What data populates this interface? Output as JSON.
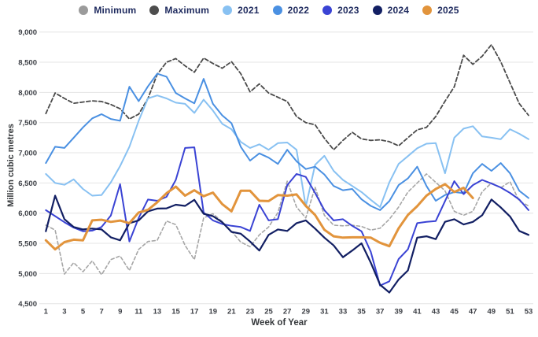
{
  "legend": {
    "items": [
      {
        "id": "minimum",
        "label": "Minimum",
        "color": "#9b9b9b"
      },
      {
        "id": "maximum",
        "label": "Maximum",
        "color": "#4d4d4d"
      },
      {
        "id": "2021",
        "label": "2021",
        "color": "#88c1f2"
      },
      {
        "id": "2022",
        "label": "2022",
        "color": "#4a90e2"
      },
      {
        "id": "2023",
        "label": "2023",
        "color": "#3a43d4"
      },
      {
        "id": "2024",
        "label": "2024",
        "color": "#121f63"
      },
      {
        "id": "2025",
        "label": "2025",
        "color": "#e2943c"
      }
    ]
  },
  "chart_data": {
    "type": "line",
    "title": "",
    "xlabel": "Week of Year",
    "ylabel": "Million cubic metres",
    "xlim": [
      1,
      53
    ],
    "ylim": [
      4500,
      9000
    ],
    "grid": "horizontal",
    "legend_position": "top-center",
    "x_ticks": [
      1,
      3,
      5,
      7,
      9,
      11,
      13,
      15,
      17,
      19,
      21,
      23,
      25,
      27,
      29,
      31,
      33,
      35,
      37,
      39,
      41,
      43,
      45,
      47,
      49,
      51,
      53
    ],
    "y_ticks": [
      {
        "v": 9000,
        "label": "9,000"
      },
      {
        "v": 8500,
        "label": "8,500"
      },
      {
        "v": 8000,
        "label": "8,000"
      },
      {
        "v": 7500,
        "label": "7,500"
      },
      {
        "v": 7000,
        "label": "7,000"
      },
      {
        "v": 6500,
        "label": "6,500"
      },
      {
        "v": 6000,
        "label": "6,000"
      },
      {
        "v": 5500,
        "label": "5,500"
      },
      {
        "v": 5000,
        "label": "5,000"
      },
      {
        "v": 4500,
        "label": "4,500"
      }
    ],
    "x": [
      1,
      2,
      3,
      4,
      5,
      6,
      7,
      8,
      9,
      10,
      11,
      12,
      13,
      14,
      15,
      16,
      17,
      18,
      19,
      20,
      21,
      22,
      23,
      24,
      25,
      26,
      27,
      28,
      29,
      30,
      31,
      32,
      33,
      34,
      35,
      36,
      37,
      38,
      39,
      40,
      41,
      42,
      43,
      44,
      45,
      46,
      47,
      48,
      49,
      50,
      51,
      52,
      53
    ],
    "series": [
      {
        "name": "Minimum",
        "color": "#a6a6a6",
        "dash": "4 3",
        "width": 1.6,
        "values": [
          5800,
          5720,
          4990,
          5180,
          5030,
          5210,
          4980,
          5230,
          5290,
          5050,
          5400,
          5530,
          5550,
          5870,
          5810,
          5465,
          5230,
          5920,
          5990,
          5860,
          5700,
          5520,
          5445,
          5640,
          5770,
          6010,
          6530,
          6100,
          5920,
          6430,
          5965,
          5800,
          5790,
          5800,
          5780,
          5720,
          5750,
          5900,
          6100,
          6350,
          6500,
          6650,
          6510,
          6370,
          6030,
          5965,
          6030,
          6355,
          6500,
          6420,
          6520,
          6200,
          6120
        ]
      },
      {
        "name": "Maximum",
        "color": "#4a4a4a",
        "dash": "5 3",
        "width": 1.8,
        "values": [
          7650,
          7990,
          7900,
          7820,
          7840,
          7860,
          7850,
          7800,
          7730,
          7560,
          7640,
          7900,
          8300,
          8500,
          8560,
          8440,
          8335,
          8570,
          8480,
          8400,
          8510,
          8310,
          8010,
          8140,
          7990,
          7920,
          7850,
          7600,
          7500,
          7465,
          7240,
          7050,
          7205,
          7340,
          7230,
          7205,
          7215,
          7185,
          7115,
          7250,
          7380,
          7420,
          7600,
          7855,
          8095,
          8615,
          8465,
          8600,
          8790,
          8510,
          8160,
          7815,
          7620
        ]
      },
      {
        "name": "2021",
        "color": "#88c1f2",
        "dash": null,
        "width": 2,
        "values": [
          6650,
          6500,
          6470,
          6560,
          6400,
          6290,
          6300,
          6510,
          6780,
          7100,
          7530,
          7900,
          7950,
          7900,
          7830,
          7810,
          7660,
          7880,
          7700,
          7480,
          7390,
          7180,
          7080,
          7140,
          7050,
          7160,
          7170,
          7050,
          6110,
          6800,
          6950,
          6700,
          6550,
          6450,
          6350,
          6220,
          6100,
          6510,
          6815,
          6945,
          7075,
          7150,
          7160,
          6660,
          7250,
          7400,
          7440,
          7270,
          7250,
          7225,
          7390,
          7315,
          7225
        ]
      },
      {
        "name": "2022",
        "color": "#4a90e2",
        "dash": null,
        "width": 2,
        "values": [
          6830,
          7100,
          7080,
          7250,
          7420,
          7570,
          7640,
          7560,
          7530,
          8095,
          7855,
          8100,
          8310,
          8260,
          7990,
          7900,
          7820,
          8225,
          7810,
          7620,
          7490,
          7100,
          6870,
          6990,
          6920,
          6815,
          7050,
          6860,
          6730,
          6770,
          6640,
          6450,
          6380,
          6400,
          6230,
          6120,
          6050,
          6200,
          6465,
          6575,
          6770,
          6450,
          6205,
          6300,
          6350,
          6330,
          6660,
          6815,
          6700,
          6830,
          6660,
          6370,
          6250
        ]
      },
      {
        "name": "2023",
        "color": "#3a43d4",
        "dash": null,
        "width": 2,
        "values": [
          6050,
          5950,
          5850,
          5760,
          5700,
          5710,
          5770,
          5960,
          6480,
          5530,
          5920,
          6225,
          6205,
          6270,
          6550,
          7080,
          7090,
          6010,
          5880,
          5820,
          5790,
          5770,
          5705,
          6140,
          5880,
          5900,
          6465,
          6650,
          6600,
          6335,
          6050,
          5880,
          5900,
          5790,
          5700,
          5360,
          4800,
          4870,
          5240,
          5400,
          5835,
          5855,
          5870,
          6200,
          6530,
          6315,
          6465,
          6550,
          6490,
          6425,
          6335,
          6225,
          6050
        ]
      },
      {
        "name": "2024",
        "color": "#121f63",
        "dash": null,
        "width": 2.2,
        "values": [
          5700,
          6290,
          5900,
          5770,
          5730,
          5745,
          5730,
          5600,
          5550,
          5835,
          5880,
          6030,
          6075,
          6080,
          6140,
          6120,
          6220,
          5990,
          5950,
          5850,
          5690,
          5660,
          5530,
          5380,
          5640,
          5730,
          5705,
          5835,
          5880,
          5745,
          5595,
          5465,
          5270,
          5380,
          5500,
          5180,
          4815,
          4685,
          4900,
          5050,
          5595,
          5617,
          5570,
          5857,
          5900,
          5812,
          5855,
          5965,
          6225,
          6095,
          5945,
          5705,
          5640
        ]
      },
      {
        "name": "2025",
        "color": "#e2943c",
        "dash": null,
        "width": 3,
        "values": [
          5550,
          5400,
          5520,
          5560,
          5550,
          5880,
          5890,
          5855,
          5878,
          5835,
          6010,
          6055,
          6180,
          6330,
          6440,
          6290,
          6380,
          6280,
          6340,
          6150,
          6030,
          6370,
          6370,
          6205,
          6200,
          6300,
          6290,
          6310,
          6120,
          5970,
          5725,
          5617,
          5595,
          5600,
          5600,
          5595,
          5510,
          5452,
          5748,
          5970,
          6115,
          6290,
          6400,
          6480,
          6350,
          6420,
          6250,
          null,
          null,
          null,
          null,
          null,
          null
        ]
      }
    ]
  },
  "axis_titles": {
    "y": "Million cubic metres",
    "x": "Week of Year"
  }
}
